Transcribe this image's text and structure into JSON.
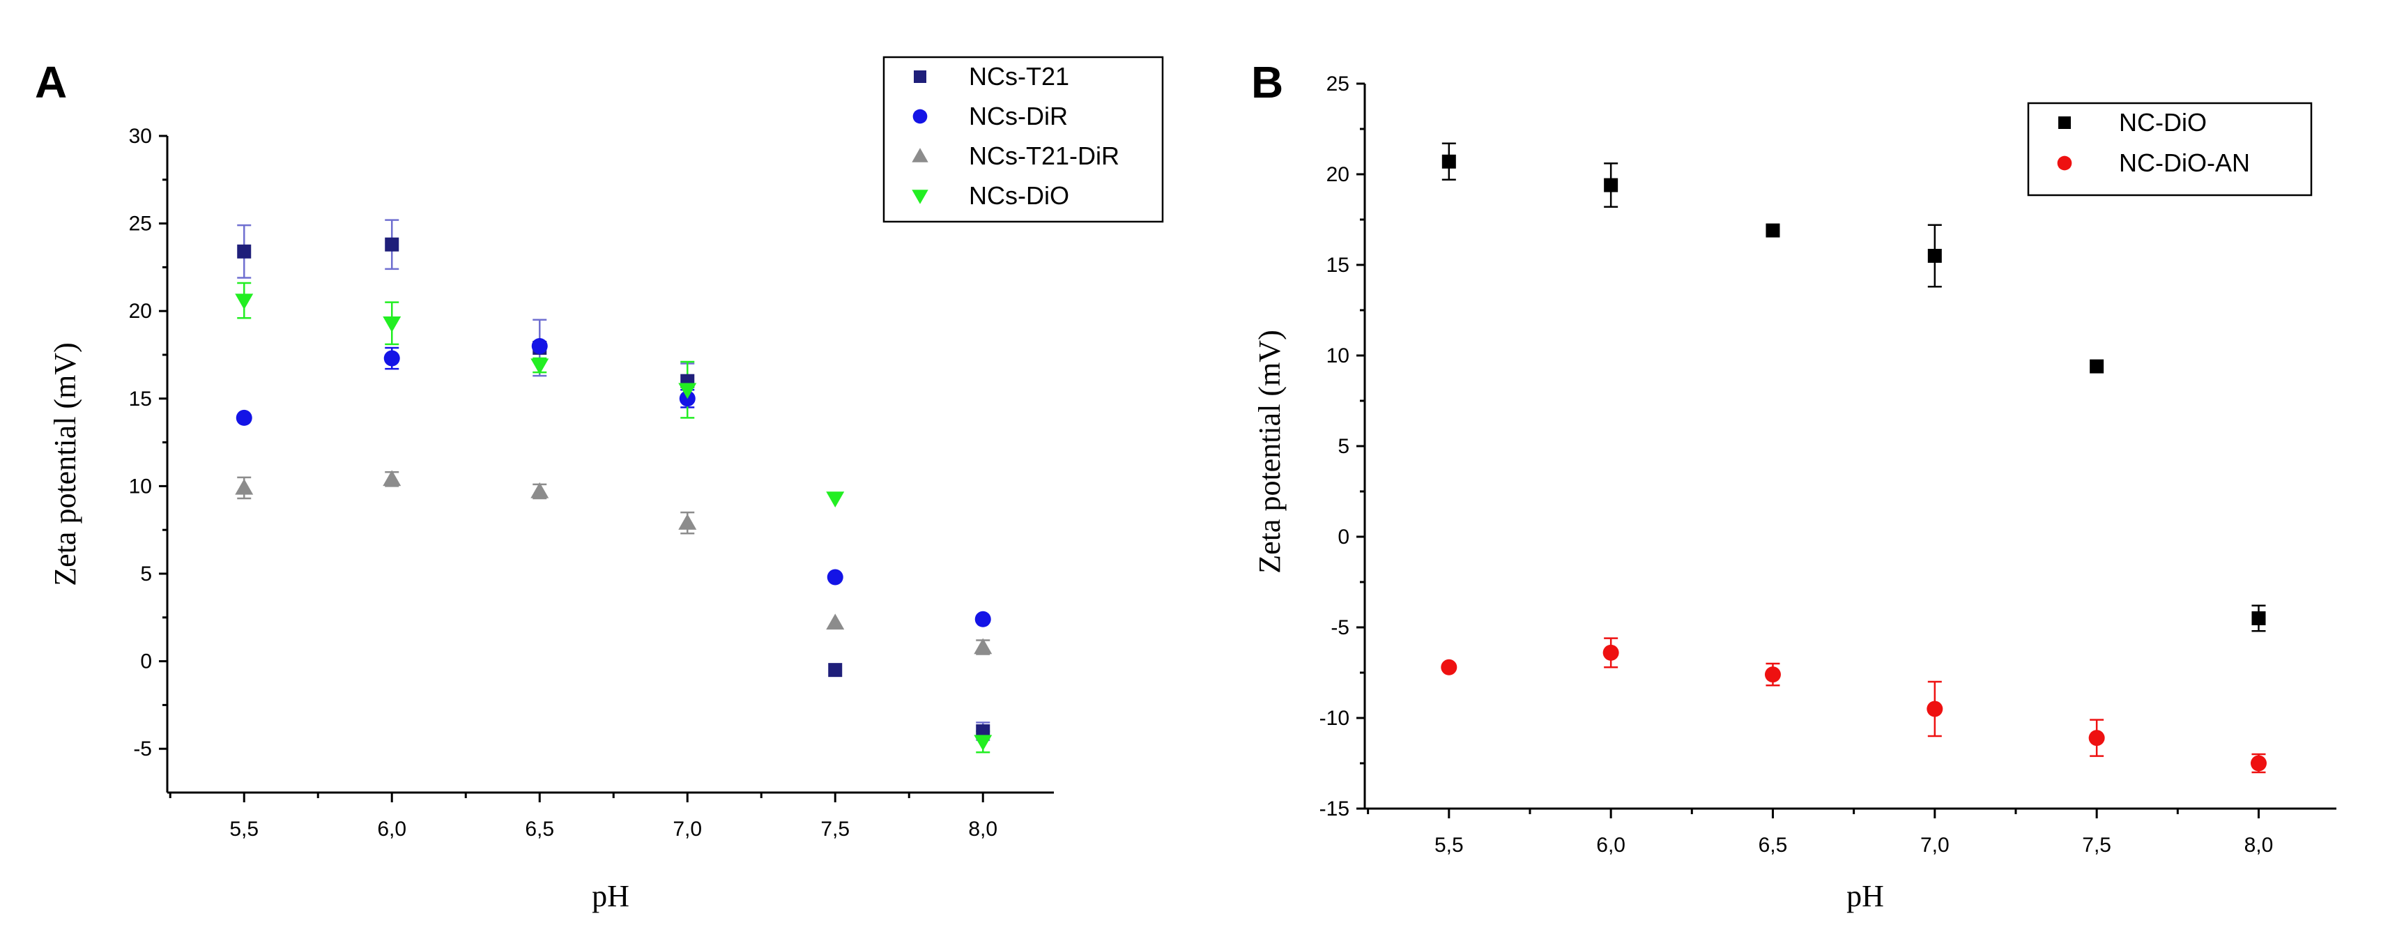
{
  "chart_data": [
    {
      "type": "scatter",
      "panel_label": "A",
      "xlabel": "pH",
      "ylabel": "Zeta potential (mV)",
      "x": [
        "5,5",
        "6,0",
        "6,5",
        "7,0",
        "7,5",
        "8,0"
      ],
      "x_values": [
        5.5,
        6.0,
        6.5,
        7.0,
        7.5,
        8.0
      ],
      "xlim": [
        5.24,
        8.24
      ],
      "ylim": [
        -7.5,
        30
      ],
      "yticks": [
        "-5",
        "0",
        "5",
        "10",
        "15",
        "20",
        "25",
        "30"
      ],
      "ytick_values": [
        -5,
        0,
        5,
        10,
        15,
        20,
        25,
        30
      ],
      "legend_position": "top-right",
      "series": [
        {
          "name": "NCs-T21",
          "marker": "square",
          "color": "#1f1f7a",
          "errorColor": "#6f6fd0",
          "values": [
            23.4,
            23.8,
            17.9,
            16.0,
            -0.5,
            -4.0
          ],
          "errors": [
            1.5,
            1.4,
            1.6,
            1.0,
            0.0,
            0.5
          ]
        },
        {
          "name": "NCs-DiR",
          "marker": "circle",
          "color": "#1414e6",
          "errorColor": "#1414e6",
          "values": [
            13.9,
            17.3,
            18.0,
            15.0,
            4.8,
            2.4
          ],
          "errors": [
            0.0,
            0.6,
            0.0,
            0.5,
            0.0,
            0.0
          ]
        },
        {
          "name": "NCs-T21-DiR",
          "marker": "triangle-up",
          "color": "#8c8c8c",
          "errorColor": "#8c8c8c",
          "values": [
            9.9,
            10.4,
            9.7,
            7.9,
            2.2,
            0.8
          ],
          "errors": [
            0.6,
            0.4,
            0.4,
            0.6,
            0.0,
            0.4
          ]
        },
        {
          "name": "NCs-DiO",
          "marker": "triangle-down",
          "color": "#22ee22",
          "errorColor": "#22ee22",
          "values": [
            20.6,
            19.3,
            16.9,
            15.5,
            9.3,
            -4.6
          ],
          "errors": [
            1.0,
            1.2,
            0.4,
            1.6,
            0.0,
            0.6
          ]
        }
      ]
    },
    {
      "type": "scatter",
      "panel_label": "B",
      "xlabel": "pH",
      "ylabel": "Zeta potential (mV)",
      "x": [
        "5,5",
        "6,0",
        "6,5",
        "7,0",
        "7,5",
        "8,0"
      ],
      "x_values": [
        5.5,
        6.0,
        6.5,
        7.0,
        7.5,
        8.0
      ],
      "xlim": [
        5.24,
        8.24
      ],
      "ylim": [
        -15,
        25
      ],
      "yticks": [
        "-15",
        "-10",
        "-5",
        "0",
        "5",
        "10",
        "15",
        "20",
        "25"
      ],
      "ytick_values": [
        -15,
        -10,
        -5,
        0,
        5,
        10,
        15,
        20,
        25
      ],
      "legend_position": "top-right",
      "series": [
        {
          "name": "NC-DiO",
          "marker": "square",
          "color": "#000000",
          "errorColor": "#000000",
          "values": [
            20.7,
            19.4,
            16.9,
            15.5,
            9.4,
            -4.5
          ],
          "errors": [
            1.0,
            1.2,
            0.0,
            1.7,
            0.0,
            0.7
          ]
        },
        {
          "name": "NC-DiO-AN",
          "marker": "circle",
          "color": "#ee1111",
          "errorColor": "#ee1111",
          "values": [
            -7.2,
            -6.4,
            -7.6,
            -9.5,
            -11.1,
            -12.5
          ],
          "errors": [
            0.0,
            0.8,
            0.6,
            1.5,
            1.0,
            0.5
          ]
        }
      ]
    }
  ]
}
